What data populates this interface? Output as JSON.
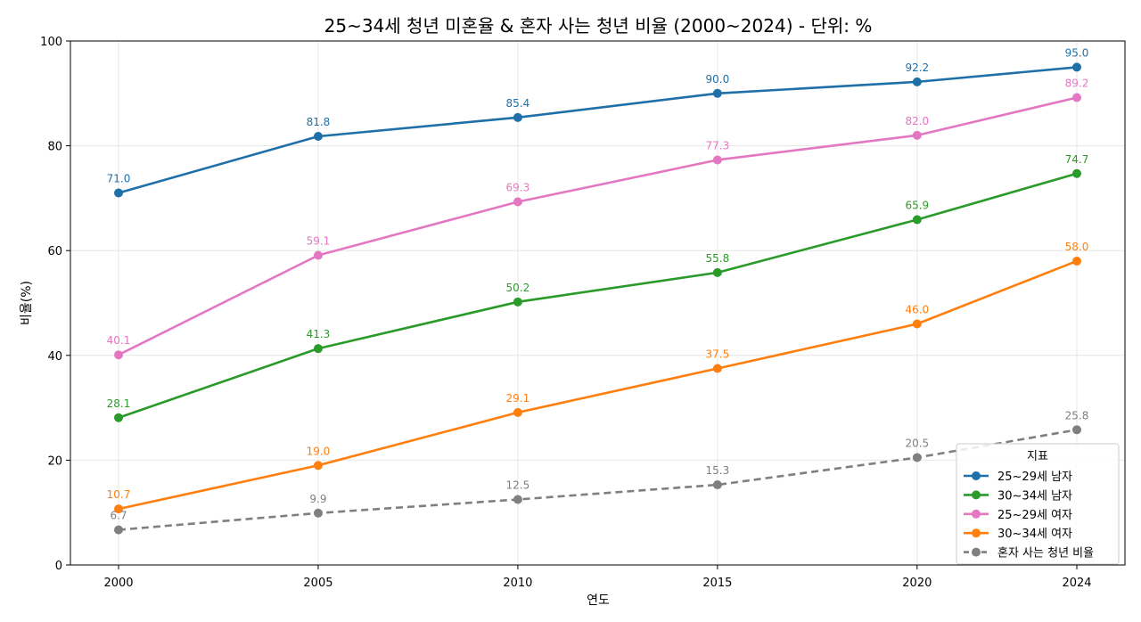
{
  "chart_data": {
    "type": "line",
    "title": "25~34세 청년 미혼율 & 혼자 사는 청년 비율 (2000~2024) - 단위: %",
    "xlabel": "연도",
    "ylabel": "비율(%)",
    "x": [
      2000,
      2005,
      2010,
      2015,
      2020,
      2024
    ],
    "x_tick_labels": [
      "2000",
      "2005",
      "2010",
      "2015",
      "2020",
      "2024"
    ],
    "ylim": [
      0,
      100
    ],
    "y_ticks": [
      0,
      20,
      40,
      60,
      80,
      100
    ],
    "grid": true,
    "legend": {
      "title": "지표",
      "position": "lower-right"
    },
    "series": [
      {
        "name": "25~29세 남자",
        "color": "#1f6fa8",
        "dashed": false,
        "values": [
          71.0,
          81.8,
          85.4,
          90.0,
          92.2,
          95.0
        ],
        "labels": [
          "71.0",
          "81.8",
          "85.4",
          "90.0",
          "92.2",
          "95.0"
        ]
      },
      {
        "name": "30~34세 남자",
        "color": "#2a9a2a",
        "dashed": false,
        "values": [
          28.1,
          41.3,
          50.2,
          55.8,
          65.9,
          74.7
        ],
        "labels": [
          "28.1",
          "41.3",
          "50.2",
          "55.8",
          "65.9",
          "74.7"
        ]
      },
      {
        "name": "25~29세 여자",
        "color": "#e377c2",
        "dashed": false,
        "values": [
          40.1,
          59.1,
          69.3,
          77.3,
          82.0,
          89.2
        ],
        "labels": [
          "40.1",
          "59.1",
          "69.3",
          "77.3",
          "82.0",
          "89.2"
        ]
      },
      {
        "name": "30~34세 여자",
        "color": "#ff7f0e",
        "dashed": false,
        "values": [
          10.7,
          19.0,
          29.1,
          37.5,
          46.0,
          58.0
        ],
        "labels": [
          "10.7",
          "19.0",
          "29.1",
          "37.5",
          "46.0",
          "58.0"
        ]
      },
      {
        "name": "혼자 사는 청년 비율",
        "color": "#7f7f7f",
        "dashed": true,
        "values": [
          6.7,
          9.9,
          12.5,
          15.3,
          20.5,
          25.8
        ],
        "labels": [
          "6.7",
          "9.9",
          "12.5",
          "15.3",
          "20.5",
          "25.8"
        ]
      }
    ]
  }
}
